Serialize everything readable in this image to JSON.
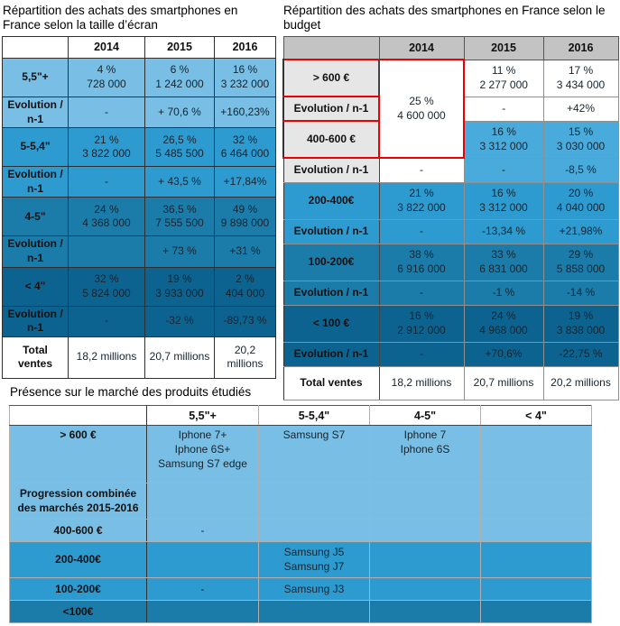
{
  "colors": {
    "c1": "#79BEE4",
    "c2": "#49ABDC",
    "c3": "#2D9AD0",
    "c4": "#1B7CAA",
    "c5": "#0D6390",
    "white": "#FFFFFF",
    "gray_header": "#C3C3C3",
    "gray_label": "#E6E6E6",
    "red_highlight": "#EE0000"
  },
  "tables": [
    {
      "id": "screen",
      "title": "Répartition des achats des smartphones en France selon la taille d’écran",
      "header": [
        "",
        "2014",
        "2015",
        "2016"
      ],
      "header_shade": "white",
      "rows": [
        {
          "label": "5,5\"+",
          "kind": "data",
          "shade": "c1",
          "cells": [
            {
              "t": "4 %\n728 000"
            },
            {
              "t": "6 %\n1 242 000"
            },
            {
              "t": "16 %\n3 232 000"
            }
          ]
        },
        {
          "label": "Evolution / n-1",
          "kind": "evo",
          "shade": "c1",
          "cells": [
            {
              "t": "-"
            },
            {
              "t": "+ 70,6 %"
            },
            {
              "t": "+160,23%"
            }
          ]
        },
        {
          "label": "5-5,4\"",
          "kind": "data",
          "shade": "c3",
          "cells": [
            {
              "t": "21 %\n3 822 000"
            },
            {
              "t": "26,5 %\n5 485 500"
            },
            {
              "t": "32 %\n6 464 000"
            }
          ]
        },
        {
          "label": "Evolution / n-1",
          "kind": "evo",
          "shade": "c3",
          "cells": [
            {
              "t": "-"
            },
            {
              "t": "+ 43,5 %"
            },
            {
              "t": "+17,84%"
            }
          ]
        },
        {
          "label": "4-5\"",
          "kind": "data",
          "shade": "c4",
          "cells": [
            {
              "t": "24 %\n4 368 000"
            },
            {
              "t": "36,5 %\n7 555 500"
            },
            {
              "t": "49 %\n9 898 000"
            }
          ]
        },
        {
          "label": "Evolution / n-1",
          "kind": "evo",
          "shade": "c4",
          "cells": [
            {
              "t": ""
            },
            {
              "t": "+ 73 %"
            },
            {
              "t": "+31 %"
            }
          ]
        },
        {
          "label": "< 4\"",
          "kind": "data",
          "shade": "c5",
          "cells": [
            {
              "t": "32 %\n5 824 000"
            },
            {
              "t": "19 %\n3 933 000"
            },
            {
              "t": "2 %\n404 000"
            }
          ]
        },
        {
          "label": "Evolution / n-1",
          "kind": "evo",
          "shade": "c5",
          "cells": [
            {
              "t": "-"
            },
            {
              "t": "-32 %"
            },
            {
              "t": "-89,73 %"
            }
          ]
        },
        {
          "label": "Total ventes",
          "kind": "total",
          "shade": "white",
          "cells": [
            {
              "t": "18,2 millions"
            },
            {
              "t": "20,7 millions"
            },
            {
              "t": "20,2 millions"
            }
          ]
        }
      ]
    },
    {
      "id": "budget",
      "title": "Répartition des achats des smartphones en France selon le budget",
      "header": [
        "",
        "2014",
        "2015",
        "2016"
      ],
      "header_shade": "gray_header",
      "rows": [
        {
          "label": "> 600 €",
          "kind": "data",
          "shade": "white",
          "label_shade": "gray_label",
          "label_red": true,
          "cells": [
            {
              "t": "25 %\n4 600 000",
              "span": 3,
              "shade": "white",
              "red": true
            },
            {
              "t": "11 %\n2 277 000"
            },
            {
              "t": "17 %\n3 434 000"
            }
          ]
        },
        {
          "label": "Evolution / n-1",
          "kind": "evo",
          "shade": "white",
          "label_shade": "gray_label",
          "label_red": true,
          "cells": [
            {
              "t": "-"
            },
            {
              "t": "+42%"
            }
          ]
        },
        {
          "label": "400-600 €",
          "kind": "data",
          "shade": "c2",
          "label_shade": "gray_label",
          "label_red": true,
          "cells": [
            {
              "t": "16 %\n3 312 000"
            },
            {
              "t": "15 %\n3 030 000"
            }
          ]
        },
        {
          "label": "Evolution / n-1",
          "kind": "evo",
          "shade": "c2",
          "label_shade": "gray_label",
          "cells": [
            {
              "t": "-",
              "shade": "white"
            },
            {
              "t": "-"
            },
            {
              "t": "-8,5 %"
            }
          ]
        },
        {
          "label": "200-400€",
          "kind": "data",
          "shade": "c3",
          "cells": [
            {
              "t": "21 %\n3 822 000"
            },
            {
              "t": "16 %\n3 312 000"
            },
            {
              "t": "20 %\n4 040 000"
            }
          ]
        },
        {
          "label": "Evolution / n-1",
          "kind": "evo",
          "shade": "c3",
          "cells": [
            {
              "t": "-"
            },
            {
              "t": "-13,34 %"
            },
            {
              "t": "+21,98%"
            }
          ]
        },
        {
          "label": "100-200€",
          "kind": "data",
          "shade": "c4",
          "cells": [
            {
              "t": "38 %\n6 916 000"
            },
            {
              "t": "33 %\n6 831 000"
            },
            {
              "t": "29 %\n5 858 000"
            }
          ]
        },
        {
          "label": "Evolution / n-1",
          "kind": "evo",
          "shade": "c4",
          "cells": [
            {
              "t": "-"
            },
            {
              "t": "-1 %"
            },
            {
              "t": "-14 %"
            }
          ]
        },
        {
          "label": "< 100 €",
          "kind": "data",
          "shade": "c5",
          "cells": [
            {
              "t": "16 %\n2 912 000"
            },
            {
              "t": "24 %\n4 968 000"
            },
            {
              "t": "19 %\n3 838 000"
            }
          ]
        },
        {
          "label": "Evolution / n-1",
          "kind": "evo",
          "shade": "c5",
          "cells": [
            {
              "t": "-"
            },
            {
              "t": "+70,6%"
            },
            {
              "t": "-22,75 %"
            }
          ]
        },
        {
          "label": "Total ventes",
          "kind": "total",
          "shade": "white",
          "cells": [
            {
              "t": "18,2 millions"
            },
            {
              "t": "20,7 millions"
            },
            {
              "t": "20,2 millions"
            }
          ]
        }
      ]
    },
    {
      "id": "products",
      "title": "Présence sur le marché des produits étudiés",
      "header": [
        "",
        "5,5\"+",
        "5-5,4\"",
        "4-5\"",
        "< 4\""
      ],
      "header_shade": "white",
      "rows": [
        {
          "label": "> 600 €",
          "kind": "r-top",
          "shade": "c1",
          "cells": [
            {
              "t": "Iphone 7+\nIphone 6S+\nSamsung S7 edge"
            },
            {
              "t": "Samsung S7"
            },
            {
              "t": "Iphone 7\nIphone 6S"
            },
            {
              "t": ""
            }
          ]
        },
        {
          "label": "Progression combinée des marchés 2015-2016",
          "kind": "r-tall",
          "shade": "c1",
          "cells": [
            {
              "t": ""
            },
            {
              "t": ""
            },
            {
              "t": ""
            },
            {
              "t": ""
            }
          ]
        },
        {
          "label": "400-600 €",
          "kind": "r-short",
          "shade": "c1",
          "cells": [
            {
              "t": "-"
            },
            {
              "t": ""
            },
            {
              "t": ""
            },
            {
              "t": ""
            }
          ]
        },
        {
          "label": "200-400€",
          "kind": "r-tall",
          "shade": "c3",
          "cells": [
            {
              "t": ""
            },
            {
              "t": "Samsung J5\nSamsung J7"
            },
            {
              "t": ""
            },
            {
              "t": ""
            }
          ]
        },
        {
          "label": "100-200€",
          "kind": "r-short",
          "shade": "c3",
          "cells": [
            {
              "t": "-"
            },
            {
              "t": "Samsung J3"
            },
            {
              "t": ""
            },
            {
              "t": ""
            }
          ]
        },
        {
          "label": "<100€",
          "kind": "r-short",
          "shade": "c4",
          "cells": [
            {
              "t": ""
            },
            {
              "t": ""
            },
            {
              "t": ""
            },
            {
              "t": ""
            }
          ]
        }
      ]
    }
  ]
}
